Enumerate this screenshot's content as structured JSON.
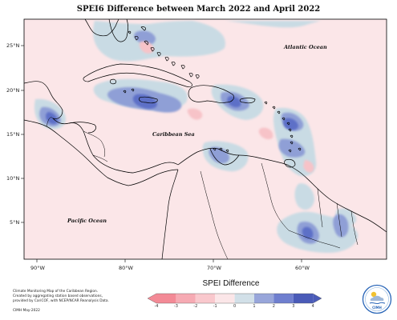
{
  "title": "SPEI6 Difference between March 2022 and April 2022",
  "map": {
    "lon_ticks": [
      "90°W",
      "80°W",
      "70°W",
      "60°W"
    ],
    "lat_ticks": [
      "25°N",
      "20°N",
      "15°N",
      "10°N",
      "5°N"
    ],
    "labels": {
      "atlantic": "Atlantic Ocean",
      "caribbean": "Caribbean Sea",
      "pacific": "Pacific Ocean"
    },
    "colors": {
      "background_slight_dry": "#fbe6e8",
      "land_outline": "#000000",
      "wet_light": "#c9dbe4",
      "wet_mid": "#8f9fd6",
      "wet_strong": "#5d6fc7",
      "dry_mid": "#f7c3c8"
    }
  },
  "legend": {
    "title": "SPEI Difference",
    "ticks": [
      "-4",
      "-3",
      "-2",
      "-1",
      "0",
      "1",
      "2",
      "3",
      "4"
    ],
    "colors": [
      "#f38a96",
      "#f6aab3",
      "#f9c8cd",
      "#fbe6e8",
      "#d2e0e8",
      "#98a6da",
      "#6f7fcf",
      "#4a5bb8"
    ]
  },
  "footer": {
    "line1": "Climate Monitoring Map of the Caribbean Region.",
    "line2": "Created by aggregating station based observations,",
    "line3": "provided by CariCOF, with NCEP/NCAR Reanalysis Data.",
    "credit": "CIMH May-2022"
  },
  "logo": {
    "text": "CIMH"
  }
}
